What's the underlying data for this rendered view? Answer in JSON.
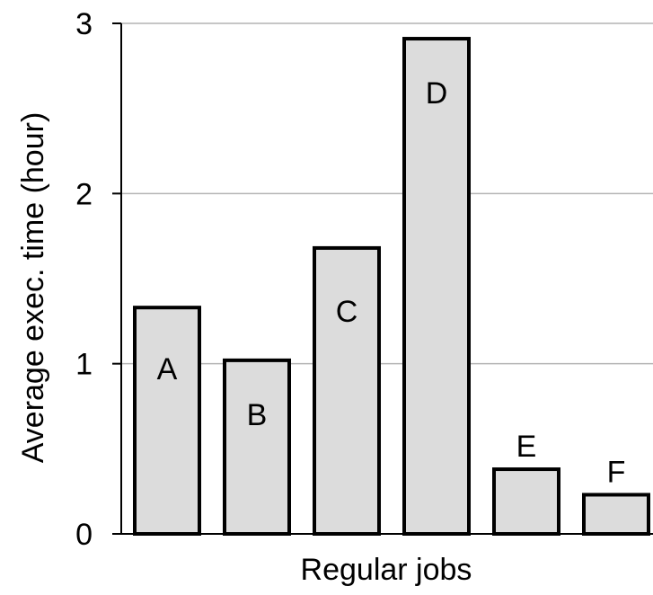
{
  "chart_data": {
    "type": "bar",
    "title": "",
    "xlabel": "Regular jobs",
    "ylabel": "Average exec. time (hour)",
    "ylim": [
      0,
      3
    ],
    "yticks": [
      0,
      1,
      2,
      3
    ],
    "ytick_labels": [
      "0",
      "1",
      "2",
      "3"
    ],
    "categories": [
      "A",
      "B",
      "C",
      "D",
      "E",
      "F"
    ],
    "values": [
      1.33,
      1.02,
      1.68,
      2.91,
      0.38,
      0.23
    ],
    "grid": "horizontal",
    "legend": "none",
    "colors": {
      "bar_fill": "#dcdcdc",
      "bar_stroke": "#000000",
      "grid": "#b4b4b4",
      "axis": "#000000"
    }
  }
}
